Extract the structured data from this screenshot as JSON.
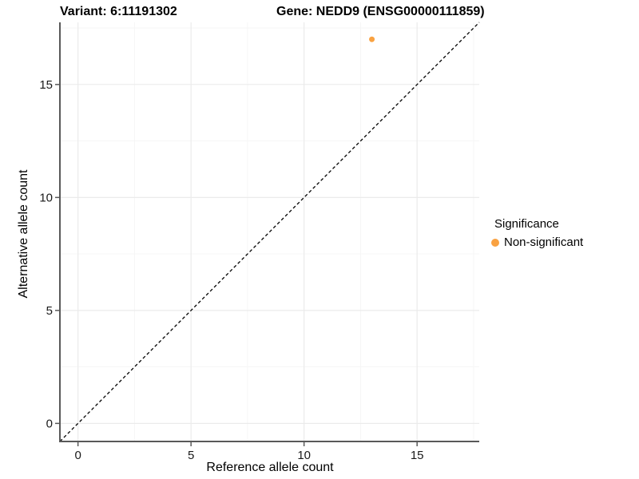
{
  "chart_data": {
    "type": "scatter",
    "title_variant": "Variant: 6:11191302",
    "title_gene": "Gene: NEDD9 (ENSG00000111859)",
    "xlabel": "Reference allele count",
    "ylabel": "Alternative allele count",
    "xlim": [
      -0.8,
      17.75
    ],
    "ylim": [
      -0.8,
      17.75
    ],
    "x_ticks": [
      0,
      5,
      10,
      15
    ],
    "y_ticks": [
      0,
      5,
      10,
      15
    ],
    "x_minor_ticks": [
      2.5,
      7.5,
      12.5,
      17.5
    ],
    "y_minor_ticks": [
      2.5,
      7.5,
      12.5,
      17.5
    ],
    "grid": {
      "major_color": "#EBEBEB",
      "minor_color": "#F5F5F5",
      "background": "#FFFFFF"
    },
    "axis_color": "#595959",
    "tick_label_color": "#1A1A1A",
    "identity_line": {
      "style": "dashed",
      "slope": 1,
      "intercept": 0,
      "color": "#000000"
    },
    "series": [
      {
        "name": "Non-significant",
        "color": "#F9A242",
        "points": [
          {
            "x": 13,
            "y": 17
          }
        ]
      }
    ],
    "legend": {
      "title": "Significance",
      "position": "right",
      "items": [
        {
          "label": "Non-significant",
          "color": "#F9A242"
        }
      ]
    }
  }
}
